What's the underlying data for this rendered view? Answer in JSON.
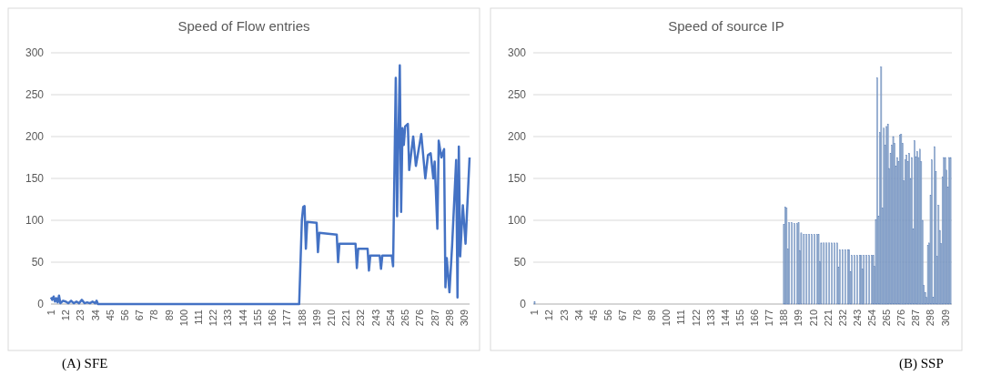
{
  "chart_data": [
    {
      "type": "line",
      "title": "Speed of Flow entries",
      "annotations": [
        "(A)  SFE"
      ],
      "xlim": [
        1,
        313
      ],
      "xticks": [
        1,
        12,
        23,
        34,
        45,
        56,
        67,
        78,
        89,
        100,
        111,
        122,
        133,
        144,
        155,
        166,
        177,
        188,
        199,
        210,
        221,
        232,
        243,
        254,
        265,
        276,
        287,
        298,
        309
      ],
      "ylim": [
        0,
        300
      ],
      "yticks": [
        0,
        50,
        100,
        150,
        200,
        250,
        300
      ],
      "grid": "y",
      "line_style": "solid",
      "series": [
        {
          "color": "#4472c4",
          "x": [
            1,
            2,
            3,
            4,
            5,
            6,
            7,
            8,
            10,
            12,
            14,
            16,
            18,
            20,
            22,
            24,
            26,
            28,
            30,
            32,
            34,
            35,
            36,
            186,
            188,
            189,
            190,
            191,
            192,
            199,
            200,
            201,
            214,
            215,
            216,
            228,
            229,
            230,
            237,
            238,
            239,
            246,
            247,
            248,
            255,
            256,
            258,
            259,
            260,
            261,
            262,
            263,
            264,
            265,
            267,
            268,
            271,
            273,
            277,
            280,
            282,
            284,
            286,
            287,
            289,
            290,
            292,
            294,
            295,
            296,
            298,
            300,
            303,
            304,
            305,
            306,
            308,
            310,
            313
          ],
          "values": [
            8,
            5,
            9,
            3,
            7,
            2,
            10,
            1,
            4,
            3,
            1,
            4,
            1,
            3,
            1,
            5,
            1,
            2,
            1,
            3,
            1,
            4,
            0,
            0,
            100,
            116,
            117,
            66,
            98,
            97,
            62,
            85,
            83,
            50,
            72,
            72,
            43,
            66,
            66,
            40,
            58,
            58,
            42,
            58,
            58,
            45,
            270,
            105,
            200,
            285,
            110,
            210,
            190,
            212,
            215,
            160,
            200,
            165,
            203,
            150,
            178,
            180,
            150,
            170,
            90,
            195,
            175,
            185,
            20,
            55,
            14,
            70,
            172,
            8,
            188,
            57,
            118,
            72,
            175
          ]
        }
      ]
    },
    {
      "type": "bar",
      "title": "Speed of source IP",
      "annotations": [
        "(B) SSP"
      ],
      "xlim": [
        0,
        314
      ],
      "xticks": [
        1,
        12,
        23,
        34,
        45,
        56,
        67,
        78,
        89,
        100,
        111,
        122,
        133,
        144,
        155,
        166,
        177,
        188,
        199,
        210,
        221,
        232,
        243,
        254,
        265,
        276,
        287,
        298,
        309
      ],
      "ylim": [
        0,
        300
      ],
      "yticks": [
        0,
        50,
        100,
        150,
        200,
        250,
        300
      ],
      "grid": "y",
      "series": [
        {
          "color": "#9db3cf",
          "x": [
            1,
            188,
            189,
            190,
            191,
            192,
            194,
            196,
            198,
            199,
            200,
            201,
            203,
            205,
            207,
            209,
            211,
            213,
            214,
            215,
            216,
            218,
            220,
            222,
            224,
            226,
            228,
            229,
            230,
            232,
            234,
            236,
            237,
            238,
            239,
            241,
            243,
            245,
            246,
            247,
            248,
            250,
            252,
            254,
            255,
            256,
            257,
            258,
            259,
            260,
            261,
            262,
            263,
            264,
            265,
            266,
            267,
            268,
            269,
            270,
            271,
            272,
            273,
            274,
            275,
            276,
            277,
            278,
            279,
            280,
            281,
            282,
            283,
            284,
            285,
            286,
            287,
            288,
            289,
            290,
            291,
            292,
            293,
            294,
            295,
            296,
            297,
            298,
            299,
            300,
            301,
            302,
            303,
            304,
            305,
            306,
            307,
            308,
            309,
            310,
            311,
            312,
            313
          ],
          "values": [
            3,
            95,
            116,
            115,
            66,
            97,
            97,
            96,
            96,
            97,
            64,
            85,
            83,
            83,
            83,
            83,
            83,
            83,
            83,
            51,
            73,
            73,
            73,
            73,
            73,
            73,
            73,
            44,
            65,
            65,
            65,
            65,
            65,
            39,
            58,
            58,
            58,
            58,
            58,
            42,
            58,
            58,
            58,
            58,
            58,
            45,
            101,
            270,
            105,
            205,
            283,
            115,
            210,
            190,
            212,
            215,
            162,
            180,
            190,
            200,
            192,
            165,
            175,
            170,
            202,
            203,
            192,
            147,
            172,
            178,
            170,
            180,
            150,
            175,
            90,
            195,
            176,
            182,
            175,
            185,
            170,
            100,
            22,
            14,
            8,
            70,
            73,
            130,
            172,
            8,
            188,
            158,
            57,
            118,
            88,
            72,
            152,
            175,
            175,
            160,
            140,
            175,
            175
          ]
        }
      ]
    }
  ]
}
